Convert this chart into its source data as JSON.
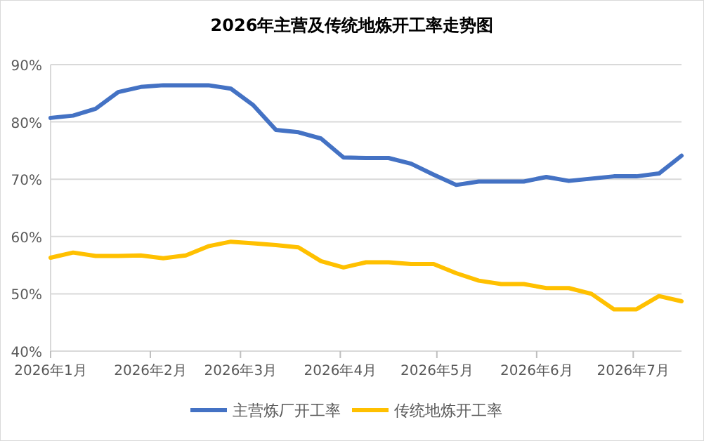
{
  "chart_data": {
    "type": "line",
    "title": "2026年主营及传统地炼开工率走势图",
    "x": [
      "2026-01-01",
      "2026-01-08",
      "2026-01-15",
      "2026-01-22",
      "2026-01-29",
      "2026-02-05",
      "2026-02-12",
      "2026-02-19",
      "2026-02-26",
      "2026-03-05",
      "2026-03-12",
      "2026-03-19",
      "2026-03-26",
      "2026-04-02",
      "2026-04-09",
      "2026-04-16",
      "2026-04-23",
      "2026-04-30",
      "2026-05-07",
      "2026-05-14",
      "2026-05-21",
      "2026-05-28",
      "2026-06-04",
      "2026-06-11",
      "2026-06-18",
      "2026-06-25",
      "2026-07-02",
      "2026-07-09",
      "2026-07-16"
    ],
    "series": [
      {
        "name": "主营炼厂开工率",
        "color": "#4472c4",
        "values": [
          80.7,
          81.1,
          82.3,
          85.2,
          86.1,
          86.4,
          86.4,
          86.4,
          85.8,
          82.9,
          78.6,
          78.2,
          77.1,
          73.8,
          73.7,
          73.7,
          72.7,
          70.8,
          69.0,
          69.6,
          69.6,
          69.6,
          70.4,
          69.7,
          70.1,
          70.5,
          70.5,
          71.0,
          74.1
        ]
      },
      {
        "name": "传统地炼开工率",
        "color": "#ffc000",
        "values": [
          56.3,
          57.2,
          56.6,
          56.6,
          56.7,
          56.2,
          56.7,
          58.3,
          59.1,
          58.8,
          58.5,
          58.1,
          55.7,
          54.6,
          55.5,
          55.5,
          55.2,
          55.2,
          53.6,
          52.3,
          51.7,
          51.7,
          51.0,
          51.0,
          50.0,
          47.3,
          47.3,
          49.6,
          48.7
        ]
      }
    ],
    "xlim": [
      "2026-01-01",
      "2026-07-16"
    ],
    "xticks": [
      {
        "value": "2026-01-01",
        "label": "2026年1月"
      },
      {
        "value": "2026-02-01",
        "label": "2026年2月"
      },
      {
        "value": "2026-03-01",
        "label": "2026年3月"
      },
      {
        "value": "2026-04-01",
        "label": "2026年4月"
      },
      {
        "value": "2026-05-01",
        "label": "2026年5月"
      },
      {
        "value": "2026-06-01",
        "label": "2026年6月"
      },
      {
        "value": "2026-07-01",
        "label": "2026年7月"
      }
    ],
    "ylim": [
      40,
      90
    ],
    "yticks": [
      {
        "value": 40,
        "label": "40%"
      },
      {
        "value": 50,
        "label": "50%"
      },
      {
        "value": 60,
        "label": "60%"
      },
      {
        "value": 70,
        "label": "70%"
      },
      {
        "value": 80,
        "label": "80%"
      },
      {
        "value": 90,
        "label": "90%"
      }
    ],
    "grid": "y",
    "legend": "bottom",
    "marker": "none",
    "line_style": "solid"
  }
}
